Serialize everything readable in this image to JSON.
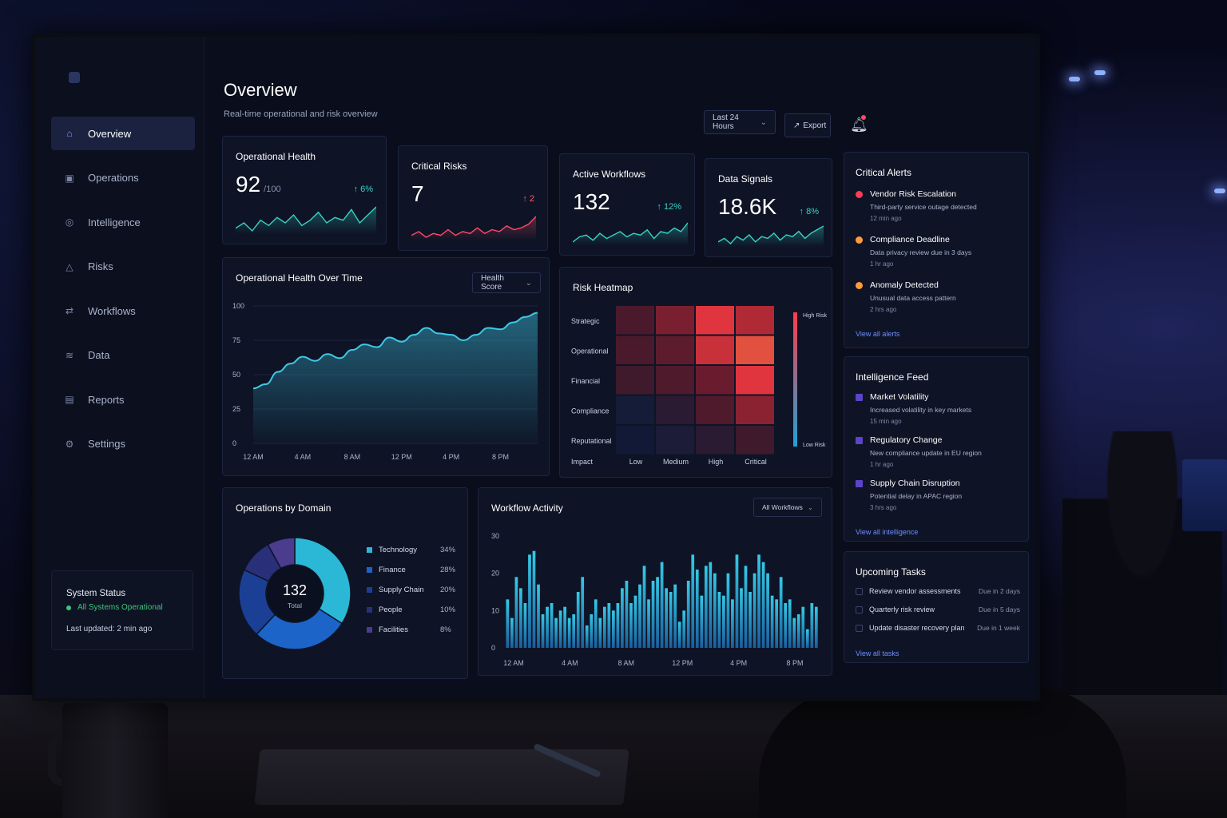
{
  "header": {
    "title": "Overview",
    "subtitle": "Real-time operational and risk overview",
    "range_label": "Last 24 Hours",
    "export_label": "Export"
  },
  "sidebar": {
    "items": [
      {
        "label": "Overview",
        "icon": "home-icon"
      },
      {
        "label": "Operations",
        "icon": "operations-icon"
      },
      {
        "label": "Intelligence",
        "icon": "target-icon"
      },
      {
        "label": "Risks",
        "icon": "warning-icon"
      },
      {
        "label": "Workflows",
        "icon": "arrows-icon"
      },
      {
        "label": "Data",
        "icon": "database-icon"
      },
      {
        "label": "Reports",
        "icon": "report-icon"
      },
      {
        "label": "Settings",
        "icon": "gear-icon"
      }
    ],
    "status": {
      "title": "System Status",
      "state": "All Systems Operational",
      "updated": "Last updated: 2 min ago"
    }
  },
  "kpis": [
    {
      "title": "Operational Health",
      "value": "92",
      "unit": "/100",
      "delta": "↑ 6%",
      "trend": "up",
      "color": "#37d3c4",
      "spark": [
        10,
        12,
        9,
        13,
        11,
        14,
        12,
        15,
        11,
        13,
        16,
        12,
        14,
        13,
        17,
        12,
        15,
        18
      ]
    },
    {
      "title": "Critical Risks",
      "value": "7",
      "unit": "",
      "delta": "↑ 2",
      "trend": "up",
      "color": "#ff4a6a",
      "spark": [
        8,
        10,
        7,
        9,
        8,
        11,
        8,
        10,
        9,
        12,
        9,
        11,
        10,
        13,
        11,
        12,
        14,
        18
      ]
    },
    {
      "title": "Active Workflows",
      "value": "132",
      "unit": "",
      "delta": "↑ 12%",
      "trend": "up",
      "color": "#37d3c4",
      "spark": [
        8,
        11,
        12,
        9,
        13,
        10,
        12,
        14,
        11,
        13,
        12,
        15,
        10,
        14,
        13,
        16,
        14,
        19
      ]
    },
    {
      "title": "Data Signals",
      "value": "18.6K",
      "unit": "",
      "delta": "↑ 8%",
      "trend": "up",
      "color": "#37d3c4",
      "spark": [
        9,
        11,
        8,
        12,
        10,
        13,
        9,
        12,
        11,
        14,
        10,
        13,
        12,
        15,
        11,
        14,
        16,
        18
      ]
    }
  ],
  "health_chart": {
    "title": "Operational Health Over Time",
    "select": "Health Score"
  },
  "risk_heatmap": {
    "title": "Risk Heatmap",
    "rows": [
      "Strategic",
      "Operational",
      "Financial",
      "Compliance",
      "Reputational"
    ],
    "cols": [
      "Low",
      "Medium",
      "High",
      "Critical"
    ],
    "axis_label": "Impact",
    "scale_high": "High Risk",
    "scale_low": "Low Risk",
    "cells": [
      [
        "#4a1a2c",
        "#7a1f30",
        "#e0353f",
        "#b02a35"
      ],
      [
        "#4a1a2c",
        "#5c1c2d",
        "#c8303a",
        "#e2513f"
      ],
      [
        "#3e1a2c",
        "#4e1a2c",
        "#6a1c2e",
        "#e0353f"
      ],
      [
        "#141c38",
        "#2a1a32",
        "#4e1a2c",
        "#8a2232"
      ],
      [
        "#111936",
        "#1c1c38",
        "#2a1a32",
        "#3e1a2c"
      ]
    ]
  },
  "domain_chart": {
    "title": "Operations by Domain",
    "total_value": "132",
    "total_label": "Total"
  },
  "workflow_chart": {
    "title": "Workflow Activity",
    "select": "All Workflows"
  },
  "alerts": {
    "title": "Critical Alerts",
    "items": [
      {
        "title": "Vendor Risk Escalation",
        "sub": "Third-party service outage detected",
        "time": "12 min ago",
        "color": "#ff3b55"
      },
      {
        "title": "Compliance Deadline",
        "sub": "Data privacy review due in 3 days",
        "time": "1 hr ago",
        "color": "#ff9a3b"
      },
      {
        "title": "Anomaly Detected",
        "sub": "Unusual data access pattern",
        "time": "2 hrs ago",
        "color": "#ff9a3b"
      }
    ],
    "link": "View all alerts"
  },
  "intel": {
    "title": "Intelligence Feed",
    "items": [
      {
        "title": "Market Volatility",
        "sub": "Increased volatility in key markets",
        "time": "15 min ago"
      },
      {
        "title": "Regulatory Change",
        "sub": "New compliance update in EU region",
        "time": "1 hr ago"
      },
      {
        "title": "Supply Chain Disruption",
        "sub": "Potential delay in APAC region",
        "time": "3 hrs ago"
      }
    ],
    "link": "View all intelligence"
  },
  "tasks": {
    "title": "Upcoming Tasks",
    "items": [
      {
        "label": "Review vendor assessments",
        "due": "Due in 2 days"
      },
      {
        "label": "Quarterly risk review",
        "due": "Due in 5 days"
      },
      {
        "label": "Update disaster recovery plan",
        "due": "Due in 1 week"
      }
    ],
    "link": "View all tasks"
  },
  "chart_data": [
    {
      "type": "area",
      "title": "Operational Health Over Time",
      "x": [
        "12 AM",
        "1 AM",
        "2 AM",
        "3 AM",
        "4 AM",
        "5 AM",
        "6 AM",
        "7 AM",
        "8 AM",
        "9 AM",
        "10 AM",
        "11 AM",
        "12 PM",
        "1 PM",
        "2 PM",
        "3 PM",
        "4 PM",
        "5 PM",
        "6 PM",
        "7 PM",
        "8 PM",
        "9 PM",
        "10 PM",
        "11 PM"
      ],
      "x_ticks": [
        "12 AM",
        "4 AM",
        "8 AM",
        "12 PM",
        "4 PM",
        "8 PM"
      ],
      "values": [
        40,
        43,
        52,
        58,
        63,
        60,
        65,
        62,
        68,
        72,
        70,
        77,
        74,
        79,
        84,
        80,
        79,
        75,
        79,
        84,
        83,
        88,
        92,
        95
      ],
      "y_ticks": [
        0,
        25,
        50,
        75,
        100
      ],
      "ylim": [
        0,
        100
      ],
      "color": "#3fc8e6"
    },
    {
      "type": "pie",
      "title": "Operations by Domain",
      "categories": [
        "Technology",
        "Finance",
        "Supply Chain",
        "People",
        "Facilities"
      ],
      "values": [
        34,
        28,
        20,
        10,
        8
      ],
      "labels": [
        "34%",
        "28%",
        "20%",
        "10%",
        "8%"
      ],
      "colors": [
        "#2bb8d6",
        "#1c64c8",
        "#1b3f94",
        "#2a2f7a",
        "#4b3c8e"
      ]
    },
    {
      "type": "bar",
      "title": "Workflow Activity",
      "x_ticks": [
        "12 AM",
        "4 AM",
        "8 AM",
        "12 PM",
        "4 PM",
        "8 PM"
      ],
      "values": [
        13,
        8,
        19,
        16,
        12,
        25,
        26,
        17,
        9,
        11,
        12,
        8,
        10,
        11,
        8,
        9,
        15,
        19,
        6,
        9,
        13,
        8,
        11,
        12,
        10,
        12,
        16,
        18,
        12,
        14,
        17,
        22,
        13,
        18,
        19,
        23,
        16,
        15,
        17,
        7,
        10,
        18,
        25,
        21,
        14,
        22,
        23,
        20,
        15,
        14,
        20,
        13,
        25,
        16,
        22,
        15,
        20,
        25,
        23,
        20,
        14,
        13,
        19,
        12,
        13,
        8,
        9,
        11,
        5,
        12,
        11
      ],
      "y_ticks": [
        0,
        10,
        20,
        30
      ],
      "ylim": [
        0,
        30
      ],
      "color": "#2bb8d6"
    }
  ]
}
